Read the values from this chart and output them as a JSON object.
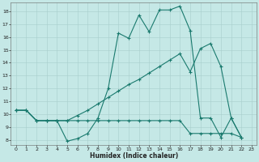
{
  "xlabel": "Humidex (Indice chaleur)",
  "bg_color": "#c5e8e6",
  "grid_color": "#a8cecc",
  "line_color": "#1a7a6e",
  "xlim": [
    -0.5,
    23.5
  ],
  "ylim": [
    7.6,
    18.7
  ],
  "xticks": [
    0,
    1,
    2,
    3,
    4,
    5,
    6,
    7,
    8,
    9,
    10,
    11,
    12,
    13,
    14,
    15,
    16,
    17,
    18,
    19,
    20,
    21,
    22,
    23
  ],
  "yticks": [
    8,
    9,
    10,
    11,
    12,
    13,
    14,
    15,
    16,
    17,
    18
  ],
  "line1": {
    "x": [
      0,
      1,
      2,
      3,
      4,
      5,
      6,
      7,
      8,
      9,
      10,
      11,
      12,
      13,
      14,
      15,
      16,
      17,
      18,
      19,
      20,
      21,
      22
    ],
    "y": [
      10.3,
      10.3,
      9.5,
      9.5,
      9.5,
      7.9,
      8.1,
      8.5,
      9.7,
      12.0,
      16.3,
      15.9,
      17.7,
      16.4,
      18.1,
      18.1,
      18.4,
      16.5,
      9.7,
      9.7,
      8.2,
      9.7,
      8.2
    ]
  },
  "line2": {
    "x": [
      0,
      1,
      2,
      3,
      4,
      5,
      6,
      7,
      8,
      9,
      10,
      11,
      12,
      13,
      14,
      15,
      16,
      17,
      18,
      19,
      20,
      21,
      22
    ],
    "y": [
      10.3,
      10.3,
      9.5,
      9.5,
      9.5,
      9.5,
      9.5,
      9.5,
      9.5,
      9.5,
      9.5,
      9.5,
      9.5,
      9.5,
      9.5,
      9.5,
      9.5,
      8.5,
      8.5,
      8.5,
      8.5,
      8.5,
      8.2
    ]
  },
  "line3": {
    "x": [
      0,
      1,
      2,
      3,
      4,
      5,
      6,
      7,
      8,
      9,
      10,
      11,
      12,
      13,
      14,
      15,
      16,
      17,
      18,
      19,
      20,
      21,
      22
    ],
    "y": [
      10.3,
      10.3,
      9.5,
      9.5,
      9.5,
      9.5,
      9.9,
      10.3,
      10.8,
      11.3,
      11.8,
      12.3,
      12.7,
      13.2,
      13.7,
      14.2,
      14.7,
      13.3,
      15.1,
      15.5,
      13.7,
      9.7,
      8.2
    ]
  }
}
